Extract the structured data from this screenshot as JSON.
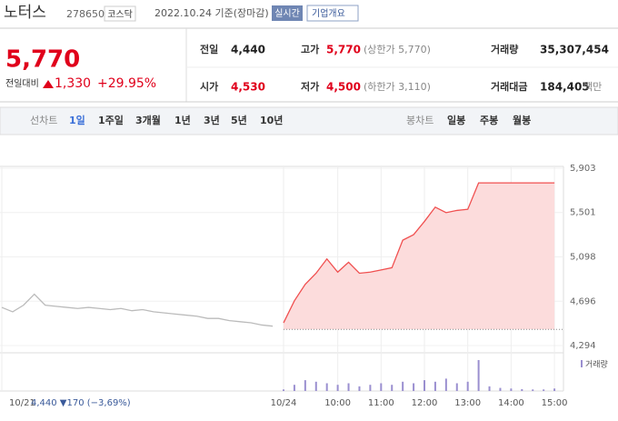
{
  "header": {
    "name": "노터스",
    "code": "278650",
    "market": "코스닥",
    "date": "2022.10.24 기준(장마감)",
    "realtime": "실시간",
    "company": "기업개요"
  },
  "quote": {
    "price": "5,770",
    "change_label": "전일대비",
    "change": "1,330",
    "rate": "+29.95%"
  },
  "stats": [
    [
      "전일",
      "4,440",
      ""
    ],
    [
      "고가",
      "5,770",
      "(상한가 5,770)"
    ],
    [
      "거래량",
      "35,307,454",
      ""
    ],
    [
      "시가",
      "4,530",
      ""
    ],
    [
      "저가",
      "4,500",
      "(하한가 3,110)"
    ],
    [
      "거래대금",
      "184,405",
      "백만"
    ]
  ],
  "tabs": {
    "line": "선차트",
    "periods": [
      "1일",
      "1주일",
      "3개월",
      "1년",
      "3년",
      "5년",
      "10년"
    ],
    "candle": "봉차트",
    "candles": [
      "일봉",
      "주봉",
      "월봉"
    ]
  },
  "footer": {
    "date": "10/21",
    "text": "4,440 ▼170 (−3,69%)"
  },
  "chart_data": {
    "type": "line",
    "categories": [
      "10/21",
      null,
      null,
      null,
      null,
      null,
      null,
      null,
      null,
      null,
      null,
      null,
      null,
      null,
      null,
      null,
      null,
      null,
      null,
      null,
      null,
      null,
      null,
      null,
      null,
      null,
      "10/24",
      null,
      null,
      null,
      null,
      "10:00",
      null,
      null,
      null,
      "11:00",
      null,
      null,
      null,
      "12:00",
      null,
      null,
      null,
      "13:00",
      null,
      null,
      null,
      "14:00",
      null,
      null,
      null,
      "15:00"
    ],
    "series": [
      {
        "name": "10/21",
        "color": "#bbbbbb",
        "values": [
          4640,
          4600,
          4660,
          4760,
          4660,
          4650,
          4640,
          4630,
          4640,
          4630,
          4620,
          4630,
          4610,
          4620,
          4600,
          4590,
          4580,
          4570,
          4560,
          4540,
          4540,
          4520,
          4510,
          4500,
          4480,
          4470,
          null,
          null,
          null,
          null,
          null,
          null,
          null,
          null,
          null,
          null,
          null,
          null,
          null,
          null,
          null,
          null,
          null,
          null,
          null,
          null,
          null,
          null,
          null,
          null,
          null,
          null
        ]
      },
      {
        "name": "10/24",
        "color": "#f05050",
        "fill": "#fcdcdc",
        "values": [
          null,
          null,
          null,
          null,
          null,
          null,
          null,
          null,
          null,
          null,
          null,
          null,
          null,
          null,
          null,
          null,
          null,
          null,
          null,
          null,
          null,
          null,
          null,
          null,
          null,
          null,
          4500,
          4700,
          4850,
          4950,
          5080,
          4960,
          5050,
          4950,
          4960,
          4980,
          5000,
          5250,
          5300,
          5420,
          5550,
          5500,
          5520,
          5530,
          5770,
          5770,
          5770,
          5770,
          5770,
          5770,
          5770,
          5770
        ]
      }
    ],
    "volume": {
      "label": "거래량",
      "color": "#9a8fd0",
      "values": [
        null,
        null,
        null,
        null,
        null,
        null,
        null,
        null,
        null,
        null,
        null,
        null,
        null,
        null,
        null,
        null,
        null,
        null,
        null,
        null,
        null,
        null,
        null,
        null,
        null,
        null,
        5,
        20,
        35,
        30,
        25,
        20,
        25,
        15,
        20,
        25,
        20,
        30,
        25,
        35,
        30,
        40,
        25,
        30,
        100,
        15,
        10,
        8,
        6,
        5,
        5,
        8
      ]
    },
    "baseline": 4440,
    "ylim": [
      4294,
      5903
    ],
    "yticks": [
      {
        "value": 4294,
        "label": "4,294"
      },
      {
        "value": 4696,
        "label": "4,696"
      },
      {
        "value": 5098,
        "label": "5,098"
      },
      {
        "value": 5501,
        "label": "5,501"
      },
      {
        "value": 5903,
        "label": "5,903"
      }
    ],
    "grid": true
  }
}
